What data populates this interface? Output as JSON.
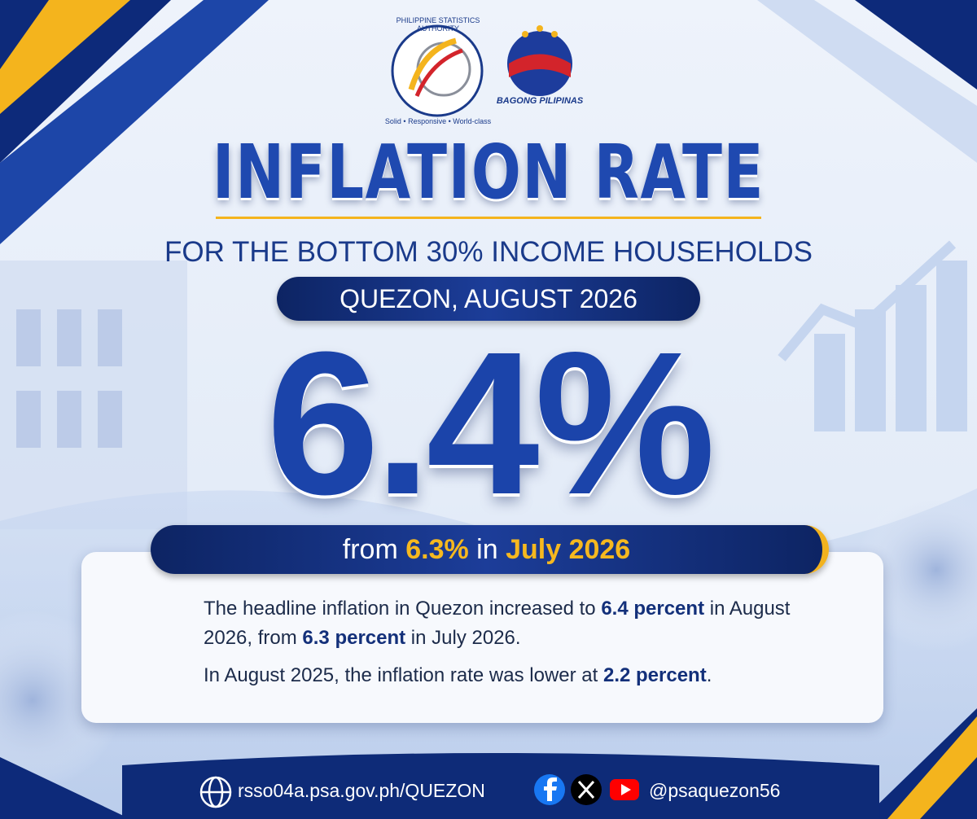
{
  "logos": {
    "psa_name": "PHILIPPINE STATISTICS AUTHORITY",
    "psa_motto": "Solid • Responsive • World-class",
    "bagong_pilipinas": "BAGONG PILIPINAS"
  },
  "header": {
    "title": "INFLATION RATE",
    "subtitle": "FOR THE BOTTOM 30% INCOME HOUSEHOLDS",
    "location_period": "QUEZON, AUGUST 2026"
  },
  "headline": {
    "rate": "6.4%"
  },
  "comparison": {
    "prefix": "from ",
    "previous_rate": "6.3%",
    "connector": " in ",
    "previous_period": "July 2026"
  },
  "notes": [
    {
      "segments": [
        {
          "text": "The headline inflation in Quezon increased to ",
          "bold": false
        },
        {
          "text": "6.4 percent",
          "bold": true
        },
        {
          "text": " in August 2026, from ",
          "bold": false
        },
        {
          "text": "6.3 percent",
          "bold": true
        },
        {
          "text": " in July 2026.",
          "bold": false
        }
      ]
    },
    {
      "segments": [
        {
          "text": "In August 2025, the inflation rate was lower at ",
          "bold": false
        },
        {
          "text": "2.2 percent",
          "bold": true
        },
        {
          "text": ".",
          "bold": false
        }
      ]
    }
  ],
  "footer": {
    "website": "rsso04a.psa.gov.ph/QUEZON",
    "handle": "@psaquezon56"
  }
}
